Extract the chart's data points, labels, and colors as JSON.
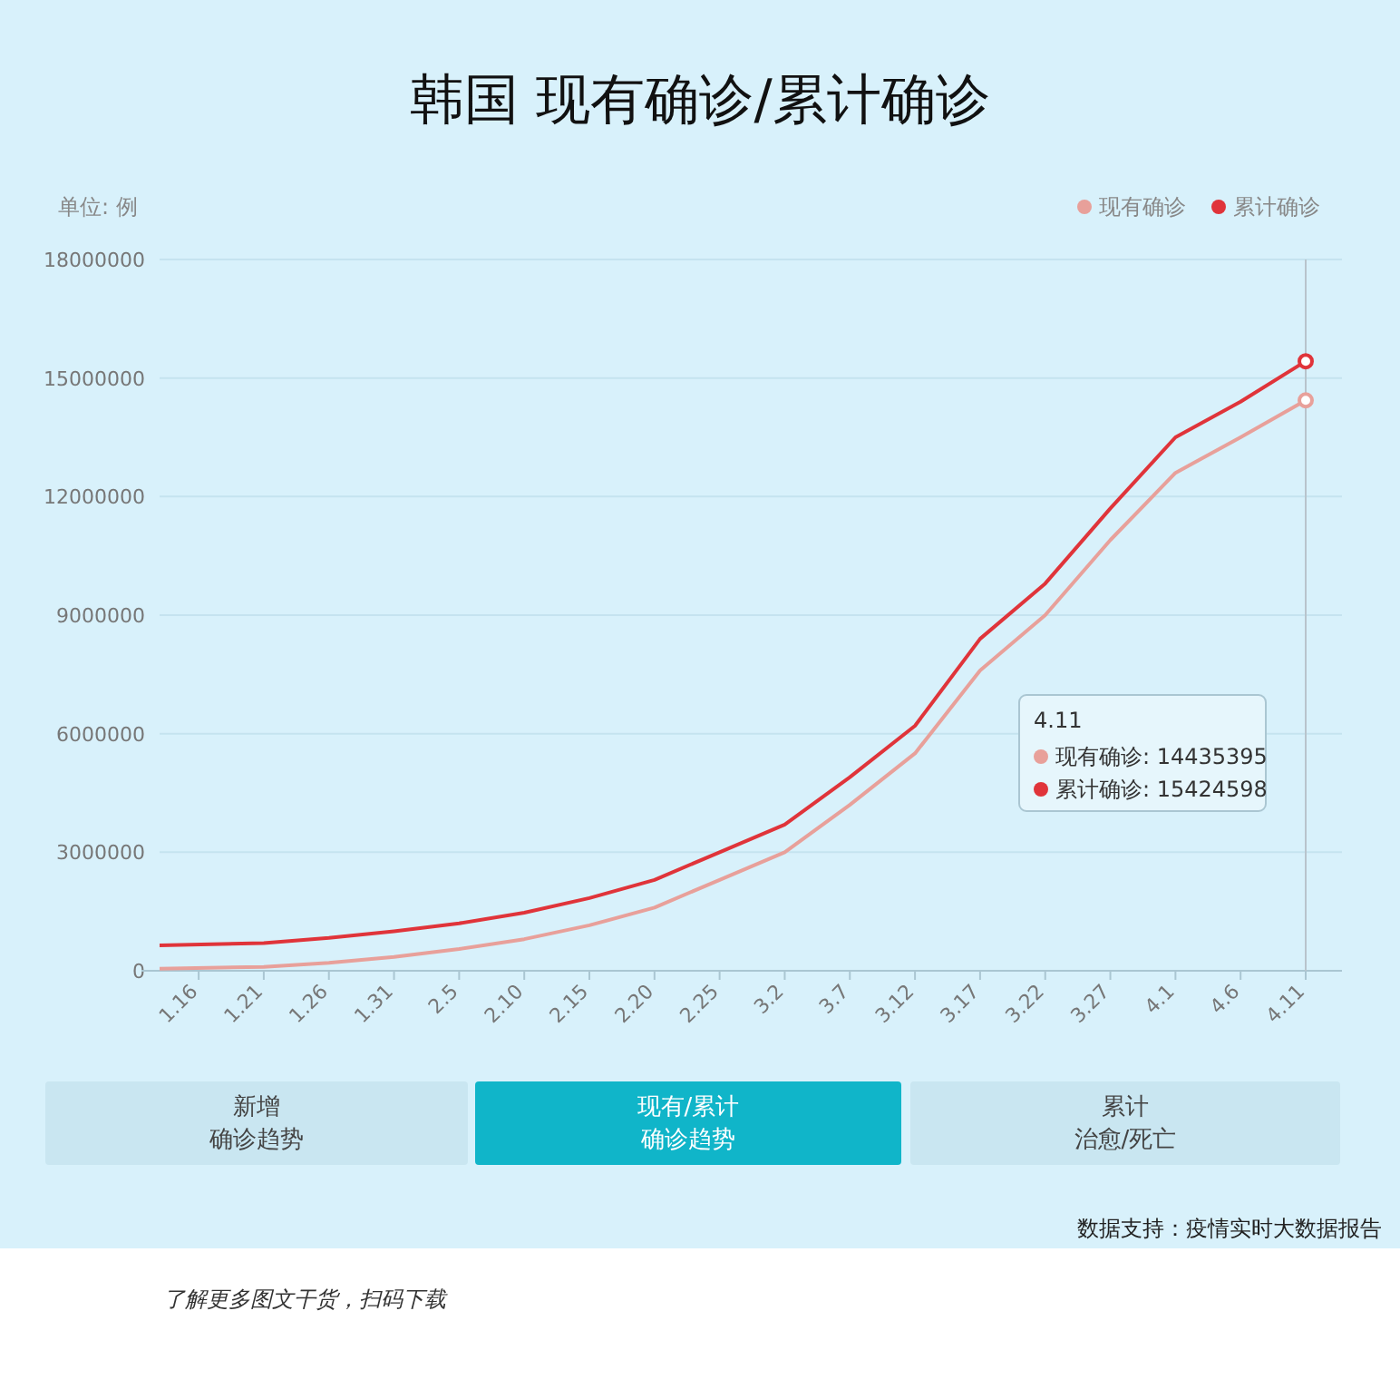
{
  "chart_data": {
    "type": "line",
    "title": "韩国 现有确诊/累计确诊",
    "ylabel": "单位: 例",
    "xlim": [
      "--01-13",
      "--04-11"
    ],
    "xticks": [
      {
        "value": "--01-16",
        "label": "1.16"
      },
      {
        "value": "--01-21",
        "label": "1.21"
      },
      {
        "value": "--01-26",
        "label": "1.26"
      },
      {
        "value": "--01-31",
        "label": "1.31"
      },
      {
        "value": "--02-05",
        "label": "2.5"
      },
      {
        "value": "--02-10",
        "label": "2.10"
      },
      {
        "value": "--02-15",
        "label": "2.15"
      },
      {
        "value": "--02-20",
        "label": "2.20"
      },
      {
        "value": "--02-25",
        "label": "2.25"
      },
      {
        "value": "--03-02",
        "label": "3.2"
      },
      {
        "value": "--03-07",
        "label": "3.7"
      },
      {
        "value": "--03-12",
        "label": "3.12"
      },
      {
        "value": "--03-17",
        "label": "3.17"
      },
      {
        "value": "--03-22",
        "label": "3.22"
      },
      {
        "value": "--03-27",
        "label": "3.27"
      },
      {
        "value": "--04-01",
        "label": "4.1"
      },
      {
        "value": "--04-06",
        "label": "4.6"
      },
      {
        "value": "--04-11",
        "label": "4.11"
      }
    ],
    "ylim": [
      0,
      18000000
    ],
    "yticks": [
      0,
      3000000,
      6000000,
      9000000,
      12000000,
      15000000,
      18000000
    ],
    "x": [
      "--01-13",
      "--01-21",
      "--01-26",
      "--01-31",
      "--02-05",
      "--02-10",
      "--02-15",
      "--02-20",
      "--02-25",
      "--03-02",
      "--03-07",
      "--03-12",
      "--03-17",
      "--03-22",
      "--03-27",
      "--04-01",
      "--04-06",
      "--04-11"
    ],
    "series": [
      {
        "name": "现有确诊",
        "color": "#e8a09a",
        "values": [
          50000,
          100000,
          200000,
          350000,
          550000,
          800000,
          1150000,
          1600000,
          2300000,
          3000000,
          4200000,
          5500000,
          7600000,
          9000000,
          10900000,
          12600000,
          13500000,
          14435395
        ]
      },
      {
        "name": "累计确诊",
        "color": "#e0343a",
        "values": [
          640000,
          700000,
          830000,
          1000000,
          1200000,
          1470000,
          1840000,
          2300000,
          3000000,
          3700000,
          4900000,
          6200000,
          8400000,
          9800000,
          11700000,
          13500000,
          14400000,
          15424598
        ]
      }
    ],
    "grid": "y",
    "legend": "top right",
    "marker": "none",
    "line_style": "solid",
    "ref_lines": [
      {
        "axis": "x",
        "value": "--04-11",
        "label": null,
        "color": "#b8c4cc"
      }
    ],
    "annotations": [
      "4.11",
      "现有确诊: 14435395",
      "累计确诊: 15424598",
      "新增确诊趋势",
      "现有/累计确诊趋势",
      "累计治愈/死亡",
      "数据支持：疫情实时大数据报告",
      "了解更多图文干货，扫码下载"
    ]
  }
}
